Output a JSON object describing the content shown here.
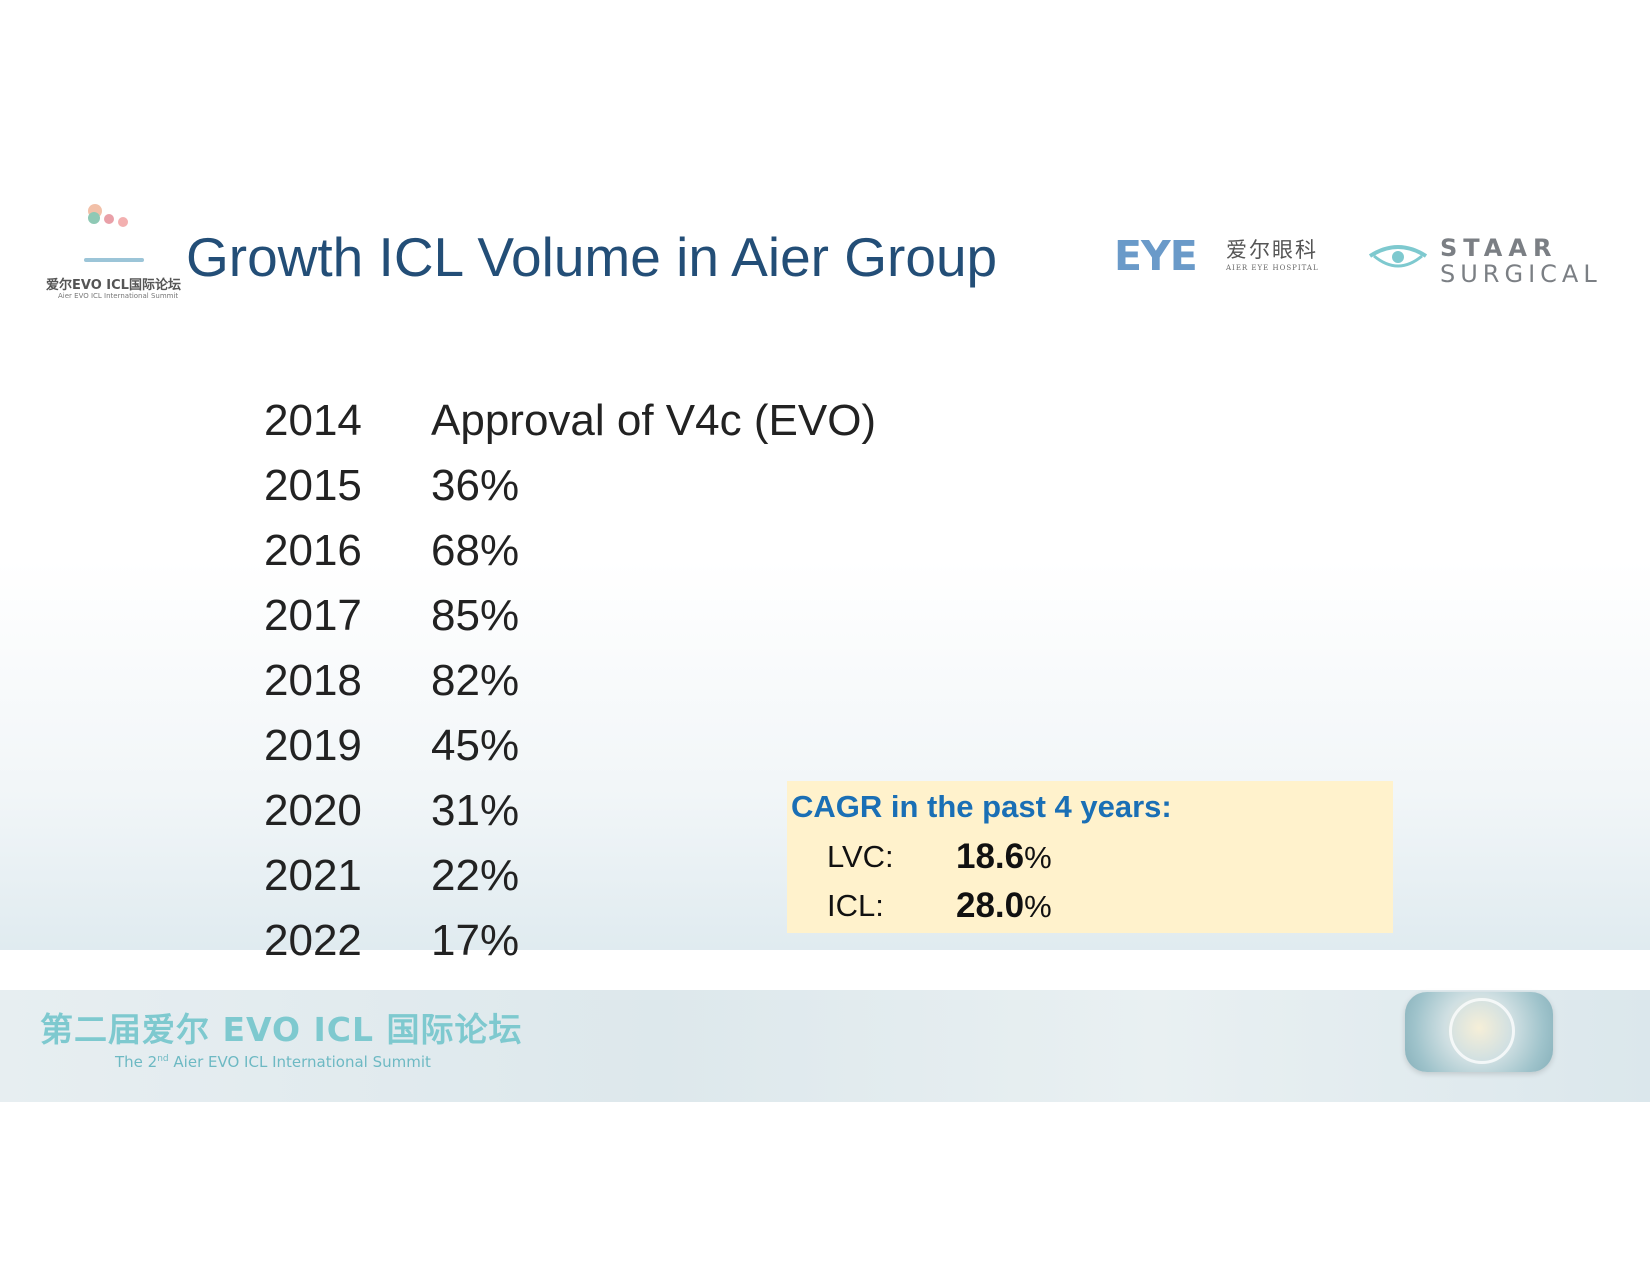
{
  "slide": {
    "title": "Growth ICL Volume in Aier Group"
  },
  "logos": {
    "summit": {
      "cn": "爱尔EVO ICL国际论坛",
      "en": "Aier EVO ICL International Summit"
    },
    "eye_hospital": {
      "mark": "EYE",
      "cn": "爱尔眼科",
      "en": "AIER EYE HOSPITAL"
    },
    "staar": {
      "line1": "STAAR",
      "line2": "SURGICAL"
    }
  },
  "table": {
    "rows": [
      {
        "year": "2014",
        "value": "Approval of V4c (EVO)"
      },
      {
        "year": "2015",
        "value": "36%"
      },
      {
        "year": "2016",
        "value": "68%"
      },
      {
        "year": "2017",
        "value": "85%"
      },
      {
        "year": "2018",
        "value": "82%"
      },
      {
        "year": "2019",
        "value": "45%"
      },
      {
        "year": "2020",
        "value": "31%"
      },
      {
        "year": "2021",
        "value": "22%"
      },
      {
        "year": "2022",
        "value": "17%"
      }
    ]
  },
  "cagr": {
    "title": "CAGR in the past 4 years:",
    "lvc_label": "LVC:",
    "lvc_value": "18.6",
    "lvc_unit": "%",
    "icl_label": "ICL:",
    "icl_value": "28.0",
    "icl_unit": "%"
  },
  "footer": {
    "title_cn": "第二届爱尔 EVO ICL 国际论坛",
    "title_en_pre": "The 2",
    "title_en_sup": "nd",
    "title_en_post": " Aier EVO ICL International Summit"
  },
  "colors": {
    "title": "#234e77",
    "cagr_title": "#1a6fb5",
    "cagr_bg": "#fff2cc",
    "footer_text": "#7ec9cf"
  }
}
